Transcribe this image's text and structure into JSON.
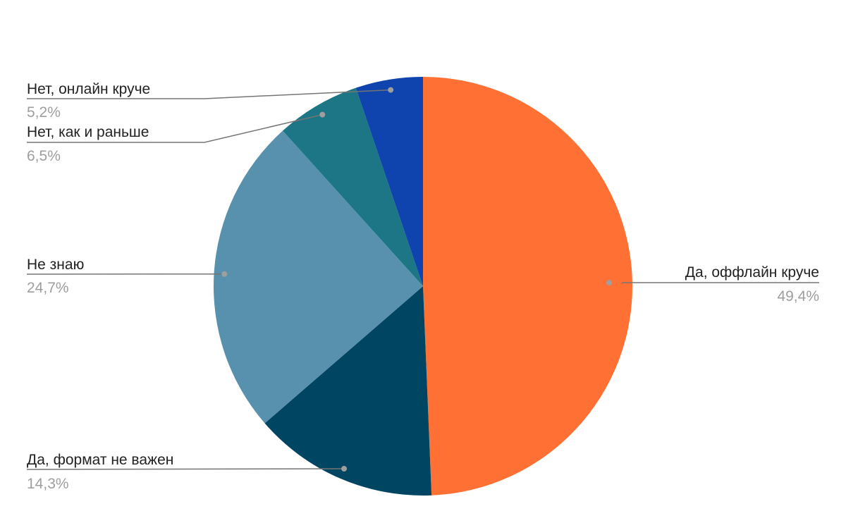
{
  "chart_data": {
    "type": "pie",
    "title": "",
    "start_angle_deg": 0,
    "direction": "clockwise",
    "slices": [
      {
        "label": "Да, оффлайн круче",
        "value": 49.4,
        "value_label": "49,4%",
        "color": "#ff7034",
        "label_side": "right"
      },
      {
        "label": "Да, формат не важен",
        "value": 14.3,
        "value_label": "14,3%",
        "color": "#004561",
        "label_side": "left"
      },
      {
        "label": "Не знаю",
        "value": 24.7,
        "value_label": "24,7%",
        "color": "#5891ad",
        "label_side": "left"
      },
      {
        "label": "Нет, как и раньше",
        "value": 6.5,
        "value_label": "6,5%",
        "color": "#1c7685",
        "label_side": "left"
      },
      {
        "label": "Нет, онлайн круче",
        "value": 5.2,
        "value_label": "5,2%",
        "color": "#0f43ad",
        "label_side": "left"
      }
    ]
  }
}
